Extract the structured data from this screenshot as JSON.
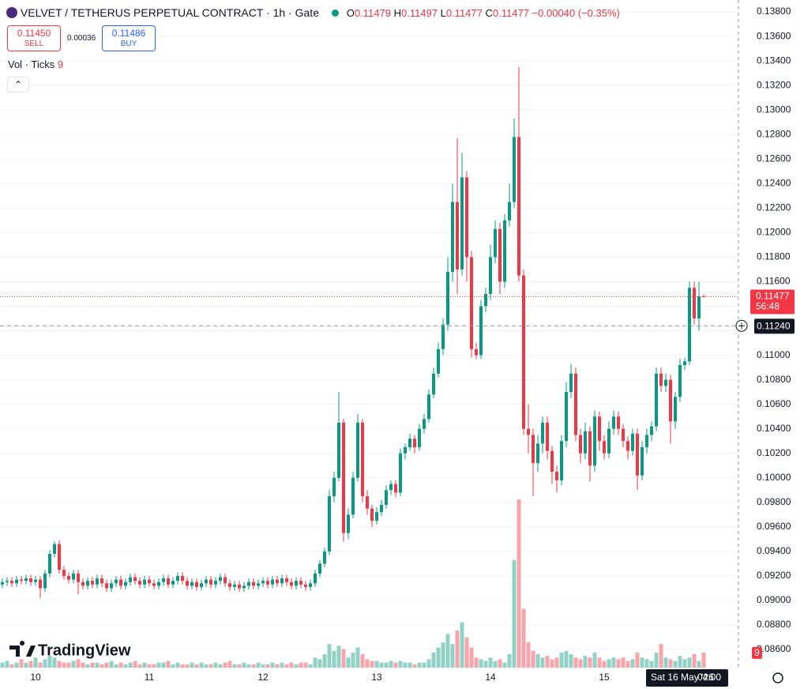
{
  "toolbar": {
    "title": "VELVET / TETHERUS PERPETUAL CONTRACT · 1h · Gate",
    "ohlc_labels": [
      "O",
      "H",
      "L",
      "C"
    ],
    "change": "−0.00040 (−0.35%)",
    "sell": {
      "price": "0.11450",
      "label": "SELL"
    },
    "spread": "0.00036",
    "buy": {
      "price": "0.11486",
      "label": "BUY"
    },
    "indicator": "Vol · Ticks",
    "logo": "TradingView",
    "countdown": "56:48"
  },
  "chart_data": {
    "type": "candlestick",
    "up_color": "#089981",
    "down_color": "#f23645",
    "volume_up_color": "#92d2c6",
    "volume_down_color": "#f6a6ab",
    "grid": true,
    "categories": [
      null,
      null,
      null,
      null,
      null,
      null,
      null,
      "10",
      null,
      null,
      null,
      null,
      null,
      null,
      null,
      null,
      null,
      null,
      null,
      null,
      null,
      null,
      null,
      null,
      null,
      null,
      null,
      null,
      null,
      null,
      null,
      "11",
      null,
      null,
      null,
      null,
      null,
      null,
      null,
      null,
      null,
      null,
      null,
      null,
      null,
      null,
      null,
      null,
      null,
      null,
      null,
      null,
      null,
      null,
      null,
      "12",
      null,
      null,
      null,
      null,
      null,
      null,
      null,
      null,
      null,
      null,
      null,
      null,
      null,
      null,
      null,
      null,
      null,
      null,
      null,
      null,
      null,
      null,
      null,
      "13",
      null,
      null,
      null,
      null,
      null,
      null,
      null,
      null,
      null,
      null,
      null,
      null,
      null,
      null,
      null,
      null,
      null,
      null,
      null,
      null,
      null,
      null,
      null,
      "14",
      null,
      null,
      null,
      null,
      null,
      null,
      null,
      null,
      null,
      null,
      null,
      null,
      null,
      null,
      null,
      null,
      null,
      null,
      null,
      null,
      null,
      null,
      null,
      "15",
      null,
      null,
      null,
      null,
      null,
      null,
      null,
      null,
      null,
      null,
      null,
      null,
      null,
      null,
      null,
      null,
      null,
      null,
      null,
      null,
      null
    ],
    "open": [
      0.0913,
      0.0915,
      0.0916,
      0.0914,
      0.0917,
      0.0916,
      0.0918,
      0.0915,
      0.0917,
      0.091,
      0.0922,
      0.0938,
      0.0946,
      0.0925,
      0.092,
      0.0917,
      0.0922,
      0.0915,
      0.0912,
      0.0916,
      0.0913,
      0.0918,
      0.0914,
      0.091,
      0.0914,
      0.0917,
      0.0912,
      0.0915,
      0.0919,
      0.0916,
      0.0913,
      0.0917,
      0.0914,
      0.0912,
      0.0915,
      0.0918,
      0.0913,
      0.0916,
      0.092,
      0.0916,
      0.0912,
      0.0915,
      0.0911,
      0.0914,
      0.0917,
      0.0913,
      0.0916,
      0.0919,
      0.0914,
      0.0911,
      0.0913,
      0.091,
      0.0912,
      0.0915,
      0.0912,
      0.0914,
      0.0916,
      0.0913,
      0.0917,
      0.0914,
      0.0918,
      0.0915,
      0.0912,
      0.0916,
      0.0913,
      0.0911,
      0.0914,
      0.0922,
      0.093,
      0.094,
      0.0985,
      0.1,
      0.1045,
      0.0955,
      0.097,
      0.1,
      0.1045,
      0.0985,
      0.0975,
      0.0965,
      0.0972,
      0.0978,
      0.099,
      0.0995,
      0.0988,
      0.102,
      0.1025,
      0.1032,
      0.1025,
      0.104,
      0.1048,
      0.1068,
      0.1085,
      0.1105,
      0.1125,
      0.1168,
      0.1225,
      0.117,
      0.1245,
      0.118,
      0.1105,
      0.11,
      0.114,
      0.115,
      0.118,
      0.1203,
      0.116,
      0.121,
      0.1225,
      0.1278,
      0.1165,
      0.104,
      0.1035,
      0.1012,
      0.1028,
      0.1045,
      0.1022,
      0.1005,
      0.0998,
      0.103,
      0.107,
      0.1085,
      0.1035,
      0.102,
      0.1038,
      0.101,
      0.105,
      0.103,
      0.102,
      0.104,
      0.105,
      0.104,
      0.103,
      0.1022,
      0.1036,
      0.1002,
      0.1025,
      0.1035,
      0.1042,
      0.1085,
      0.1075,
      0.108,
      0.1046,
      0.1066,
      0.1092,
      0.1095,
      0.1155,
      0.113,
      0.11479
    ],
    "high": [
      0.0918,
      0.0919,
      0.0919,
      0.092,
      0.092,
      0.0921,
      0.0921,
      0.092,
      0.092,
      0.0925,
      0.0941,
      0.0948,
      0.0949,
      0.0928,
      0.0923,
      0.0925,
      0.0925,
      0.0918,
      0.0919,
      0.0919,
      0.0921,
      0.0921,
      0.0917,
      0.0917,
      0.092,
      0.092,
      0.0918,
      0.0922,
      0.0922,
      0.0919,
      0.092,
      0.092,
      0.0917,
      0.0918,
      0.0921,
      0.0921,
      0.0919,
      0.0923,
      0.0923,
      0.0919,
      0.0918,
      0.0918,
      0.0917,
      0.092,
      0.092,
      0.0919,
      0.0922,
      0.0922,
      0.0917,
      0.0916,
      0.0916,
      0.0915,
      0.0918,
      0.0918,
      0.0917,
      0.0919,
      0.0919,
      0.092,
      0.092,
      0.0921,
      0.0921,
      0.0918,
      0.0919,
      0.0919,
      0.0916,
      0.0917,
      0.0925,
      0.0933,
      0.0943,
      0.099,
      0.1005,
      0.107,
      0.1048,
      0.0975,
      0.1005,
      0.1052,
      0.1048,
      0.099,
      0.0978,
      0.0976,
      0.0982,
      0.0994,
      0.0998,
      0.0998,
      0.1024,
      0.1028,
      0.1036,
      0.1035,
      0.1044,
      0.1052,
      0.1072,
      0.109,
      0.111,
      0.113,
      0.118,
      0.124,
      0.1277,
      0.1265,
      0.125,
      0.1185,
      0.111,
      0.1145,
      0.1155,
      0.119,
      0.121,
      0.1208,
      0.1215,
      0.124,
      0.1293,
      0.1335,
      0.117,
      0.106,
      0.104,
      0.1035,
      0.105,
      0.105,
      0.1026,
      0.101,
      0.1035,
      0.1078,
      0.1093,
      0.109,
      0.104,
      0.1045,
      0.1042,
      0.1055,
      0.1054,
      0.1035,
      0.1046,
      0.1055,
      0.1054,
      0.1044,
      0.1034,
      0.104,
      0.104,
      0.103,
      0.104,
      0.1046,
      0.109,
      0.109,
      0.1085,
      0.1084,
      0.107,
      0.1097,
      0.1098,
      0.116,
      0.116,
      0.116,
      0.11497
    ],
    "low": [
      0.091,
      0.0912,
      0.0911,
      0.0911,
      0.0913,
      0.0913,
      0.0912,
      0.0912,
      0.0902,
      0.0907,
      0.0919,
      0.0935,
      0.0922,
      0.0917,
      0.0914,
      0.0914,
      0.0905,
      0.0909,
      0.0909,
      0.091,
      0.091,
      0.0911,
      0.0907,
      0.0907,
      0.0911,
      0.0909,
      0.0909,
      0.0912,
      0.0913,
      0.091,
      0.091,
      0.0911,
      0.0909,
      0.0909,
      0.0912,
      0.091,
      0.091,
      0.0913,
      0.0913,
      0.0909,
      0.0909,
      0.0908,
      0.0908,
      0.0911,
      0.091,
      0.091,
      0.0913,
      0.0911,
      0.0908,
      0.0908,
      0.0907,
      0.0907,
      0.0909,
      0.0909,
      0.0909,
      0.0911,
      0.091,
      0.091,
      0.0911,
      0.0911,
      0.0912,
      0.0909,
      0.0909,
      0.091,
      0.0908,
      0.0908,
      0.0911,
      0.0919,
      0.0927,
      0.0937,
      0.098,
      0.0997,
      0.0948,
      0.095,
      0.0967,
      0.0997,
      0.098,
      0.097,
      0.096,
      0.0962,
      0.0969,
      0.0975,
      0.0986,
      0.0984,
      0.0985,
      0.1015,
      0.1022,
      0.102,
      0.1022,
      0.1036,
      0.1045,
      0.1065,
      0.1082,
      0.11,
      0.112,
      0.116,
      0.115,
      0.1165,
      0.116,
      0.1098,
      0.1097,
      0.1097,
      0.1135,
      0.1145,
      0.1175,
      0.115,
      0.1155,
      0.1205,
      0.122,
      0.116,
      0.1035,
      0.102,
      0.0985,
      0.1005,
      0.102,
      0.1015,
      0.0995,
      0.0988,
      0.0994,
      0.1025,
      0.1065,
      0.103,
      0.1012,
      0.1015,
      0.0997,
      0.1005,
      0.1022,
      0.1015,
      0.1016,
      0.1035,
      0.1035,
      0.1025,
      0.1015,
      0.1018,
      0.099,
      0.0998,
      0.102,
      0.103,
      0.1038,
      0.107,
      0.107,
      0.1028,
      0.104,
      0.1062,
      0.1088,
      0.1092,
      0.1125,
      0.112,
      0.11477
    ],
    "close": [
      0.0915,
      0.0916,
      0.0914,
      0.0917,
      0.0916,
      0.0918,
      0.0915,
      0.0917,
      0.091,
      0.0922,
      0.0938,
      0.0946,
      0.0925,
      0.092,
      0.0917,
      0.0922,
      0.0915,
      0.0912,
      0.0916,
      0.0913,
      0.0918,
      0.0914,
      0.091,
      0.0914,
      0.0917,
      0.0912,
      0.0915,
      0.0919,
      0.0916,
      0.0913,
      0.0917,
      0.0914,
      0.0912,
      0.0915,
      0.0918,
      0.0913,
      0.0916,
      0.092,
      0.0916,
      0.0912,
      0.0915,
      0.0911,
      0.0914,
      0.0917,
      0.0913,
      0.0916,
      0.0919,
      0.0914,
      0.0911,
      0.0913,
      0.091,
      0.0912,
      0.0915,
      0.0912,
      0.0914,
      0.0916,
      0.0913,
      0.0917,
      0.0914,
      0.0918,
      0.0915,
      0.0912,
      0.0916,
      0.0913,
      0.0911,
      0.0914,
      0.0922,
      0.093,
      0.094,
      0.0985,
      0.1,
      0.1045,
      0.0955,
      0.097,
      0.1,
      0.1045,
      0.0985,
      0.0975,
      0.0965,
      0.0972,
      0.0978,
      0.099,
      0.0995,
      0.0988,
      0.102,
      0.1025,
      0.1032,
      0.1025,
      0.104,
      0.1048,
      0.1068,
      0.1085,
      0.1105,
      0.1125,
      0.1168,
      0.1225,
      0.117,
      0.1245,
      0.118,
      0.1105,
      0.11,
      0.114,
      0.115,
      0.118,
      0.1203,
      0.116,
      0.121,
      0.1225,
      0.1278,
      0.1165,
      0.104,
      0.1035,
      0.1012,
      0.1028,
      0.1045,
      0.1022,
      0.1005,
      0.0998,
      0.103,
      0.107,
      0.1085,
      0.1035,
      0.102,
      0.1038,
      0.101,
      0.105,
      0.103,
      0.102,
      0.104,
      0.105,
      0.104,
      0.103,
      0.1022,
      0.1036,
      0.1002,
      0.1025,
      0.1035,
      0.1042,
      0.1085,
      0.1075,
      0.108,
      0.1046,
      0.1066,
      0.1092,
      0.1095,
      0.1155,
      0.113,
      0.1148,
      0.11477
    ],
    "volume": [
      3,
      4,
      2,
      3,
      5,
      3,
      4,
      6,
      3,
      5,
      7,
      6,
      4,
      3,
      3,
      4,
      5,
      3,
      2,
      3,
      3,
      2,
      3,
      4,
      2,
      3,
      2,
      3,
      4,
      2,
      3,
      2,
      2,
      3,
      3,
      4,
      2,
      3,
      2,
      2,
      3,
      2,
      3,
      2,
      2,
      3,
      2,
      3,
      4,
      2,
      2,
      3,
      2,
      2,
      3,
      2,
      2,
      3,
      2,
      3,
      2,
      3,
      2,
      3,
      3,
      2,
      6,
      5,
      8,
      14,
      10,
      13,
      11,
      6,
      9,
      12,
      8,
      5,
      4,
      4,
      3,
      3,
      4,
      3,
      4,
      3,
      3,
      2,
      3,
      3,
      5,
      9,
      12,
      15,
      20,
      14,
      22,
      27,
      18,
      12,
      6,
      5,
      4,
      6,
      4,
      5,
      3,
      8,
      64,
      100,
      35,
      15,
      10,
      8,
      6,
      7,
      5,
      6,
      9,
      10,
      8,
      6,
      5,
      7,
      6,
      9,
      6,
      4,
      5,
      6,
      5,
      6,
      4,
      5,
      9,
      6,
      5,
      4,
      9,
      14,
      6,
      5,
      4,
      7,
      5,
      6,
      8,
      4,
      9
    ],
    "volume_lim": [
      0,
      100
    ],
    "ylim": [
      0.08452,
      0.13897
    ],
    "yticks": [
      {
        "value": 0.086,
        "label": "0.08600"
      },
      {
        "value": 0.088,
        "label": "0.08800"
      },
      {
        "value": 0.09,
        "label": "0.09000"
      },
      {
        "value": 0.092,
        "label": "0.09200"
      },
      {
        "value": 0.094,
        "label": "0.09400"
      },
      {
        "value": 0.096,
        "label": "0.09600"
      },
      {
        "value": 0.098,
        "label": "0.09800"
      },
      {
        "value": 0.1,
        "label": "0.10000"
      },
      {
        "value": 0.102,
        "label": "0.10200"
      },
      {
        "value": 0.104,
        "label": "0.10400"
      },
      {
        "value": 0.106,
        "label": "0.10600"
      },
      {
        "value": 0.108,
        "label": "0.10800"
      },
      {
        "value": 0.11,
        "label": "0.11000"
      },
      {
        "value": 0.112,
        "label": "0.11200"
      },
      {
        "value": 0.114,
        "label": "0.11400"
      },
      {
        "value": 0.116,
        "label": "0.11600"
      },
      {
        "value": 0.118,
        "label": "0.11800"
      },
      {
        "value": 0.12,
        "label": "0.12000"
      },
      {
        "value": 0.122,
        "label": "0.12200"
      },
      {
        "value": 0.124,
        "label": "0.12400"
      },
      {
        "value": 0.126,
        "label": "0.12600"
      },
      {
        "value": 0.128,
        "label": "0.12800"
      },
      {
        "value": 0.13,
        "label": "0.13000"
      },
      {
        "value": 0.132,
        "label": "0.13200"
      },
      {
        "value": 0.134,
        "label": "0.13400"
      },
      {
        "value": 0.136,
        "label": "0.13600"
      },
      {
        "value": 0.138,
        "label": "0.13800"
      }
    ],
    "crosshair": {
      "value": 0.1124,
      "label": "0.11240",
      "date": "Sat 16 May '26",
      "time": "04:00"
    }
  }
}
